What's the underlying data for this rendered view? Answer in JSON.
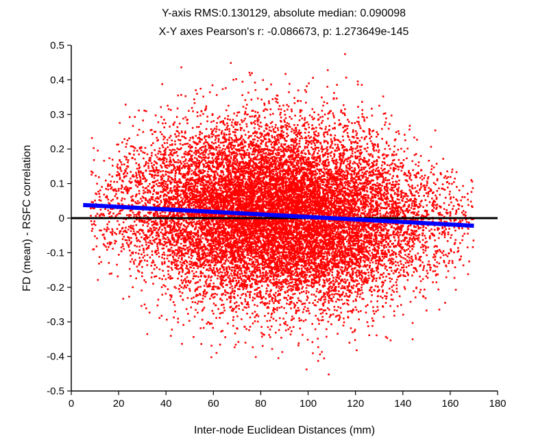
{
  "chart_data": {
    "type": "scatter",
    "title": "Y-axis RMS:0.130129, absolute median: 0.090098",
    "subtitle": "X-Y axes Pearson's r: -0.086673, p: 1.273649e-145",
    "xlabel": "Inter-node Euclidean Distances (mm)",
    "ylabel": "FD (mean) - RSFC correlation",
    "xlim": [
      0,
      180
    ],
    "ylim": [
      -0.5,
      0.5
    ],
    "x_ticks": [
      "0",
      "20",
      "40",
      "60",
      "80",
      "100",
      "120",
      "140",
      "160",
      "180"
    ],
    "y_ticks": [
      "0.5",
      "0.4",
      "0.3",
      "0.2",
      "0.1",
      "0",
      "-0.1",
      "-0.2",
      "-0.3",
      "-0.4",
      "-0.5"
    ],
    "grid": false,
    "point_color": "#ff0000",
    "fit_color": "#0000ff",
    "zero_line_color": "#000000",
    "fit_line": {
      "x": [
        5,
        170
      ],
      "y": [
        0.038,
        -0.022
      ]
    },
    "scatter_cloud": {
      "x_range": [
        8,
        170
      ],
      "x_center": 87,
      "y_range": [
        -0.49,
        0.49
      ],
      "y_rms": 0.130129,
      "abs_median": 0.090098,
      "pearson_r": -0.086673
    }
  }
}
